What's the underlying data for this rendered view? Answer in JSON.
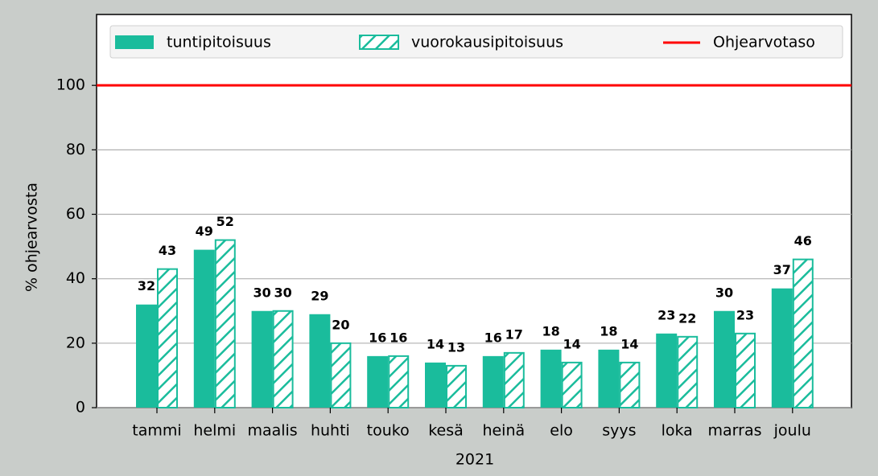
{
  "chart_data": {
    "type": "bar",
    "categories": [
      "tammi",
      "helmi",
      "maalis",
      "huhti",
      "touko",
      "kesä",
      "heinä",
      "elo",
      "syys",
      "loka",
      "marras",
      "joulu"
    ],
    "series": [
      {
        "name": "tuntipitoisuus",
        "color": "#1abc9c",
        "hatch": false,
        "values": [
          32,
          49,
          30,
          29,
          16,
          14,
          16,
          18,
          18,
          23,
          30,
          37
        ]
      },
      {
        "name": "vuorokausipitoisuus",
        "color": "#1abc9c",
        "hatch": true,
        "values": [
          43,
          52,
          30,
          20,
          16,
          13,
          17,
          14,
          14,
          22,
          23,
          46
        ]
      }
    ],
    "reference": {
      "name": "Ohjearvotaso",
      "value": 100,
      "color": "#ff0000"
    },
    "xlabel": "2021",
    "ylabel": "% ohjearvosta",
    "ylim": [
      0,
      122
    ],
    "yticks": [
      0,
      20,
      40,
      60,
      80,
      100
    ],
    "grid": true,
    "legend": "top"
  }
}
